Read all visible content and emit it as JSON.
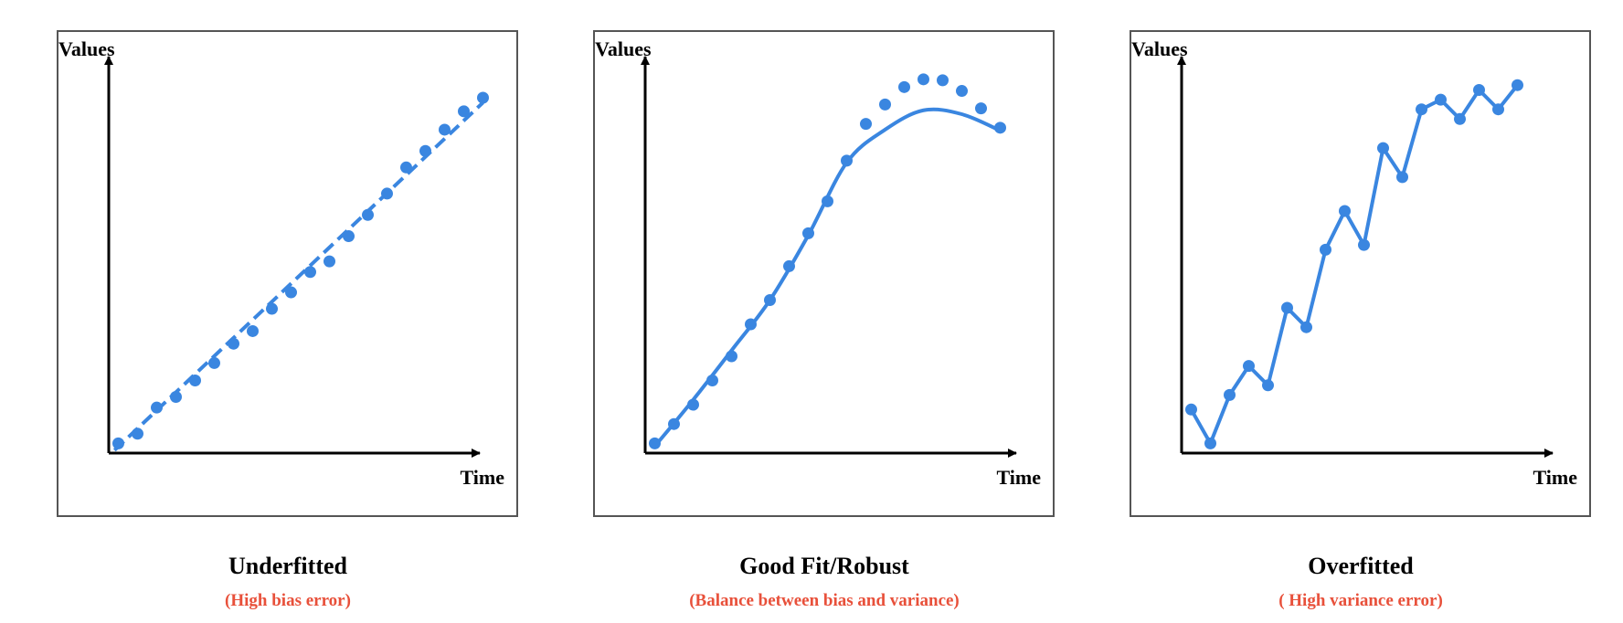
{
  "colors": {
    "series": "#3a86e0",
    "subtitle": "#e8503a",
    "axis": "#000000",
    "frame": "#555555"
  },
  "panels": [
    {
      "title": "Underfitted",
      "subtitle": "(High bias error)",
      "y_label": "Values",
      "x_label": "Time",
      "fit_style": "dashed",
      "points": [
        [
          0.5,
          1.0
        ],
        [
          1.5,
          2.0
        ],
        [
          2.5,
          4.7
        ],
        [
          3.5,
          5.8
        ],
        [
          4.5,
          7.5
        ],
        [
          5.5,
          9.3
        ],
        [
          6.5,
          11.3
        ],
        [
          7.5,
          12.6
        ],
        [
          8.5,
          14.9
        ],
        [
          9.5,
          16.6
        ],
        [
          10.5,
          18.7
        ],
        [
          11.5,
          19.8
        ],
        [
          12.5,
          22.4
        ],
        [
          13.5,
          24.6
        ],
        [
          14.5,
          26.8
        ],
        [
          15.5,
          29.5
        ],
        [
          16.5,
          31.2
        ],
        [
          17.5,
          33.4
        ],
        [
          18.5,
          35.3
        ],
        [
          19.5,
          36.7
        ]
      ],
      "fit_line": [
        [
          0.3,
          0.3
        ],
        [
          19.5,
          36.2
        ]
      ]
    },
    {
      "title": "Good Fit/Robust",
      "subtitle": "(Balance between bias and variance)",
      "y_label": "Values",
      "x_label": "Time",
      "fit_style": "solid",
      "points": [
        [
          0.5,
          1.0
        ],
        [
          1.5,
          3.0
        ],
        [
          2.5,
          5.0
        ],
        [
          3.5,
          7.5
        ],
        [
          4.5,
          10.0
        ],
        [
          5.5,
          13.3
        ],
        [
          6.5,
          15.8
        ],
        [
          7.5,
          19.3
        ],
        [
          8.5,
          22.7
        ],
        [
          9.5,
          26.0
        ],
        [
          10.5,
          30.2
        ],
        [
          11.5,
          34.0
        ],
        [
          12.5,
          36.0
        ],
        [
          13.5,
          37.8
        ],
        [
          14.5,
          38.6
        ],
        [
          15.5,
          38.5
        ],
        [
          16.5,
          37.4
        ],
        [
          17.5,
          35.6
        ],
        [
          18.5,
          33.6
        ]
      ],
      "fit_line": [
        [
          0.5,
          0.7
        ],
        [
          2.5,
          5.5
        ],
        [
          4.5,
          10.6
        ],
        [
          6.5,
          15.8
        ],
        [
          8.5,
          22.5
        ],
        [
          10.5,
          30.0
        ],
        [
          12.5,
          33.4
        ],
        [
          14.5,
          35.4
        ],
        [
          16.5,
          35.0
        ],
        [
          18.5,
          33.3
        ]
      ]
    },
    {
      "title": "Overfitted",
      "subtitle": "( High variance error)",
      "y_label": "Values",
      "x_label": "Time",
      "fit_style": "polyline",
      "points": [
        [
          0.5,
          4.5
        ],
        [
          1.5,
          1.0
        ],
        [
          2.5,
          6.0
        ],
        [
          3.5,
          9.0
        ],
        [
          4.5,
          7.0
        ],
        [
          5.5,
          15.0
        ],
        [
          6.5,
          13.0
        ],
        [
          7.5,
          21.0
        ],
        [
          8.5,
          25.0
        ],
        [
          9.5,
          21.5
        ],
        [
          10.5,
          31.5
        ],
        [
          11.5,
          28.5
        ],
        [
          12.5,
          35.5
        ],
        [
          13.5,
          36.5
        ],
        [
          14.5,
          34.5
        ],
        [
          15.5,
          37.5
        ],
        [
          16.5,
          35.5
        ],
        [
          17.5,
          38.0
        ]
      ],
      "fit_line": []
    }
  ]
}
